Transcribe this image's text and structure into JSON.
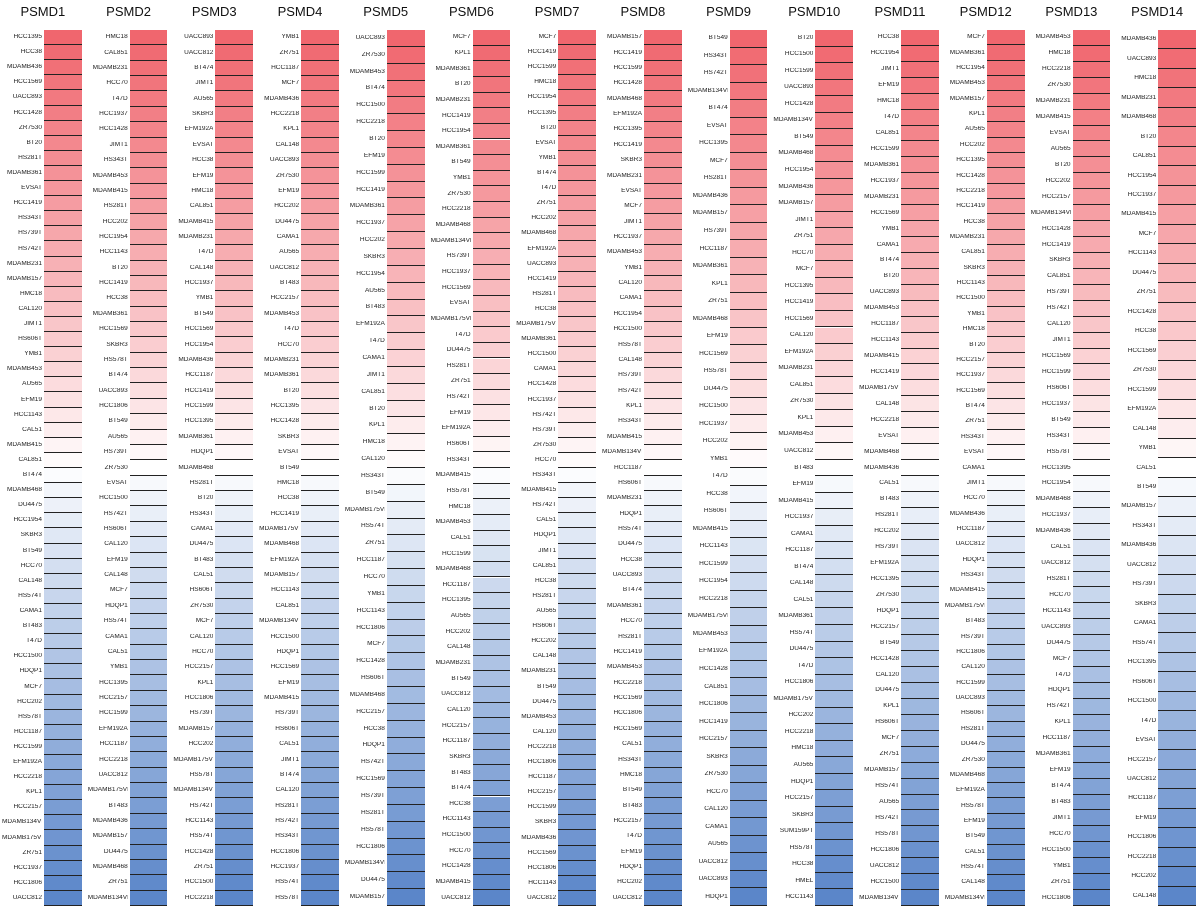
{
  "chart_data": {
    "type": "heatmap",
    "color_scale": {
      "high": "#f0666e",
      "mid": "#ffffff",
      "low": "#5b86c9"
    },
    "panels": [
      {
        "title": "PSMD1",
        "rows": [
          "HCC1395",
          "HCC38",
          "MDAMB436",
          "HCC1569",
          "UACC893",
          "HCC1428",
          "ZR7530",
          "BT20",
          "HS281T",
          "MDAMB361",
          "EVSAT",
          "HCC1419",
          "HS343T",
          "HS739T",
          "HS742T",
          "MDAMB231",
          "MDAMB157",
          "HMC18",
          "CAL120",
          "JIMT1",
          "HS606T",
          "YMB1",
          "MDAMB453",
          "AU565",
          "EFM19",
          "HCC1143",
          "CAL51",
          "MDAMB415",
          "CAL851",
          "BT474",
          "MDAMB468",
          "DU4475",
          "HCC1954",
          "SKBR3",
          "BT549",
          "HCC70",
          "CAL148",
          "HS574T",
          "CAMA1",
          "BT483",
          "T47D",
          "HCC1500",
          "HDQP1",
          "MCF7",
          "HCC202",
          "HS578T",
          "HCC1187",
          "HCC1599",
          "EFM192A",
          "HCC2218",
          "KPL1",
          "HCC2157",
          "MDAMB134VI",
          "MDAMB175VII",
          "ZR751",
          "HCC1937",
          "HCC1806",
          "UACC812"
        ]
      },
      {
        "title": "PSMD2",
        "rows": [
          "HMC18",
          "CAL851",
          "MDAMB231",
          "HCC70",
          "T47D",
          "HCC1937",
          "HCC1428",
          "JIMT1",
          "HS343T",
          "MDAMB453",
          "MDAMB415",
          "HS281T",
          "HCC202",
          "HCC1954",
          "HCC1143",
          "BT20",
          "HCC1419",
          "HCC38",
          "MDAMB361",
          "HCC1569",
          "SKBR3",
          "HS578T",
          "BT474",
          "UACC893",
          "HCC1806",
          "BT549",
          "AU565",
          "HS739T",
          "ZR7530",
          "EVSAT",
          "HCC1500",
          "HS742T",
          "HS606T",
          "CAL120",
          "EFM19",
          "CAL148",
          "MCF7",
          "HDQP1",
          "HS574T",
          "CAMA1",
          "CAL51",
          "YMB1",
          "HCC1395",
          "HCC2157",
          "HCC1599",
          "EFM192A",
          "HCC1187",
          "HCC2218",
          "UACC812",
          "MDAMB175VII",
          "BT483",
          "MDAMB436",
          "MDAMB157",
          "DU4475",
          "MDAMB468",
          "ZR751",
          "MDAMB134VI"
        ]
      },
      {
        "title": "PSMD3",
        "rows": [
          "UACC893",
          "UACC812",
          "BT474",
          "JIMT1",
          "AU565",
          "SKBR3",
          "EFM192A",
          "EVSAT",
          "HCC38",
          "EFM19",
          "HMC18",
          "CAL851",
          "MDAMB415",
          "MDAMB231",
          "T47D",
          "CAL148",
          "HCC1937",
          "YMB1",
          "BT549",
          "HCC1569",
          "HCC1954",
          "MDAMB436",
          "HCC1187",
          "HCC1419",
          "HCC1599",
          "HCC1395",
          "MDAMB361",
          "HDQP1",
          "MDAMB468",
          "HS281T",
          "BT20",
          "HS343T",
          "CAMA1",
          "DU4475",
          "BT483",
          "CAL51",
          "HS606T",
          "ZR7530",
          "MCF7",
          "CAL120",
          "HCC70",
          "HCC2157",
          "KPL1",
          "HCC1806",
          "HS739T",
          "MDAMB157",
          "HCC202",
          "MDAMB175VII",
          "HS578T",
          "MDAMB134VI",
          "HS742T",
          "HCC1143",
          "HS574T",
          "HCC1428",
          "ZR751",
          "HCC1500",
          "HCC2218"
        ]
      },
      {
        "title": "PSMD4",
        "rows": [
          "YMB1",
          "ZR751",
          "HCC1187",
          "MCF7",
          "MDAMB436",
          "HCC2218",
          "KPL1",
          "CAL148",
          "UACC893",
          "ZR7530",
          "EFM19",
          "HCC202",
          "DU4475",
          "CAMA1",
          "AU565",
          "UACC812",
          "BT483",
          "HCC2157",
          "MDAMB453",
          "T47D",
          "HCC70",
          "MDAMB231",
          "MDAMB361",
          "BT20",
          "HCC1395",
          "HCC1428",
          "SKBR3",
          "EVSAT",
          "BT549",
          "HMC18",
          "HCC38",
          "HCC1419",
          "MDAMB175VII",
          "MDAMB468",
          "EFM192A",
          "MDAMB157",
          "HCC1143",
          "CAL851",
          "MDAMB134VI",
          "HCC1500",
          "HDQP1",
          "HCC1569",
          "EFM19",
          "MDAMB415",
          "HS739T",
          "HS606T",
          "CAL51",
          "JIMT1",
          "BT474",
          "CAL120",
          "HS281T",
          "HS742T",
          "HS343T",
          "HCC1806",
          "HCC1937",
          "HS574T",
          "HS578T"
        ]
      },
      {
        "title": "PSMD5",
        "rows": [
          "UACC893",
          "ZR7530",
          "MDAMB453",
          "BT474",
          "HCC1500",
          "HCC2218",
          "BT20",
          "EFM19",
          "HCC1599",
          "HCC1419",
          "MDAMB361",
          "HCC1937",
          "HCC202",
          "SKBR3",
          "HCC1954",
          "AU565",
          "BT483",
          "EFM192A",
          "T47D",
          "CAMA1",
          "JIMT1",
          "CAL851",
          "BT20",
          "KPL1",
          "HMC18",
          "CAL120",
          "HS343T",
          "BT549",
          "MDAMB175VII",
          "HS574T",
          "ZR751",
          "HCC1187",
          "HCC70",
          "YMB1",
          "HCC1143",
          "HCC1806",
          "MCF7",
          "HCC1428",
          "HS606T",
          "MDAMB468",
          "HCC2157",
          "HCC38",
          "HDQP1",
          "HS742T",
          "HCC1569",
          "HS739T",
          "HS281T",
          "HS578T",
          "HCC1806",
          "MDAMB134VI",
          "DU4475",
          "MDAMB157"
        ]
      },
      {
        "title": "PSMD6",
        "rows": [
          "MCF7",
          "KPL1",
          "MDAMB361",
          "BT20",
          "MDAMB231",
          "HCC1419",
          "HCC1954",
          "MDAMB361",
          "BT549",
          "YMB1",
          "ZR7530",
          "HCC2218",
          "MDAMB468",
          "MDAMB134VI",
          "HS739T",
          "HCC1937",
          "HCC1569",
          "EVSAT",
          "MDAMB175VII",
          "T47D",
          "DU4475",
          "HS281T",
          "ZR751",
          "HS742T",
          "EFM19",
          "EFM192A",
          "HS606T",
          "HS343T",
          "MDAMB415",
          "HS578T",
          "HMC18",
          "MDAMB453",
          "CAL51",
          "HCC1599",
          "MDAMB468",
          "HCC1187",
          "HCC1395",
          "AU565",
          "HCC202",
          "CAL148",
          "MDAMB231",
          "BT549",
          "UACC812",
          "CAL120",
          "HCC2157",
          "HCC1187",
          "SKBR3",
          "BT483",
          "BT474",
          "HCC38",
          "HCC1143",
          "HCC1500",
          "HCC70",
          "HCC1428",
          "MDAMB415",
          "UACC812"
        ]
      },
      {
        "title": "PSMD7",
        "rows": [
          "MCF7",
          "HCC1419",
          "HCC1599",
          "HMC18",
          "HCC1954",
          "HCC1395",
          "BT20",
          "EVSAT",
          "YMB1",
          "BT474",
          "T47D",
          "ZR751",
          "HCC202",
          "MDAMB468",
          "EFM192A",
          "UACC893",
          "HCC1419",
          "HS281T",
          "HCC38",
          "MDAMB175VII",
          "MDAMB361",
          "HCC1500",
          "CAMA1",
          "HCC1428",
          "HCC1937",
          "HS742T",
          "HS739T",
          "ZR7530",
          "HCC70",
          "HS343T",
          "MDAMB415",
          "HS742T",
          "CAL51",
          "HDQP1",
          "JIMT1",
          "CAL851",
          "HCC38",
          "HS281T",
          "AU565",
          "HS606T",
          "HCC202",
          "CAL148",
          "MDAMB231",
          "BT549",
          "DU4475",
          "MDAMB453",
          "CAL120",
          "HCC2218",
          "HCC1806",
          "HCC1187",
          "HCC2157",
          "HCC1599",
          "SKBR3",
          "MDAMB436",
          "HCC1569",
          "HCC1806",
          "HCC1143",
          "UACC812"
        ]
      },
      {
        "title": "PSMD8",
        "rows": [
          "MDAMB157",
          "HCC1419",
          "HCC1599",
          "HCC1428",
          "MDAMB468",
          "EFM192A",
          "HCC1395",
          "HCC1419",
          "SKBR3",
          "MDAMB231",
          "EVSAT",
          "MCF7",
          "JIMT1",
          "HCC1937",
          "MDAMB453",
          "YMB1",
          "CAL120",
          "CAMA1",
          "HCC1954",
          "HCC1500",
          "HS578T",
          "CAL148",
          "HS739T",
          "HS742T",
          "KPL1",
          "HS343T",
          "MDAMB415",
          "MDAMB134VI",
          "HCC1187",
          "HS606T",
          "MDAMB231",
          "HDQP1",
          "HS574T",
          "DU4475",
          "HCC38",
          "UACC893",
          "BT474",
          "MDAMB361",
          "HCC70",
          "HS281T",
          "HCC1419",
          "MDAMB453",
          "HCC2218",
          "HCC1569",
          "HCC1806",
          "HCC1569",
          "CAL51",
          "HS343T",
          "HMC18",
          "BT549",
          "BT483",
          "HCC2157",
          "T47D",
          "EFM19",
          "HDQP1",
          "HCC202",
          "UACC812"
        ]
      },
      {
        "title": "PSMD9",
        "rows": [
          "BT549",
          "HS343T",
          "HS742T",
          "MDAMB134VI",
          "BT474",
          "EVSAT",
          "HCC1395",
          "MCF7",
          "HS281T",
          "MDAMB436",
          "MDAMB157",
          "HS739T",
          "HCC1187",
          "MDAMB361",
          "KPL1",
          "ZR751",
          "MDAMB468",
          "EFM19",
          "HCC1569",
          "HS578T",
          "DU4475",
          "HCC1500",
          "HCC1937",
          "HCC202",
          "YMB1",
          "T47D",
          "HCC38",
          "HS606T",
          "MDAMB415",
          "HCC1143",
          "HCC1599",
          "HCC1954",
          "HCC2218",
          "MDAMB175VII",
          "MDAMB453",
          "EFM192A",
          "HCC1428",
          "CAL851",
          "HCC1806",
          "HCC1419",
          "HCC2157",
          "SKBR3",
          "ZR7530",
          "HCC70",
          "CAL120",
          "CAMA1",
          "AU565",
          "UACC812",
          "UACC893",
          "HDQP1"
        ]
      },
      {
        "title": "PSMD10",
        "rows": [
          "BT20",
          "HCC1500",
          "HCC1599",
          "UACC893",
          "HCC1428",
          "MDAMB134VI",
          "BT549",
          "MDAMB468",
          "HCC1954",
          "MDAMB436",
          "MDAMB157",
          "JIMT1",
          "ZR751",
          "HCC70",
          "MCF7",
          "HCC1395",
          "HCC1419",
          "HCC1569",
          "CAL120",
          "EFM192A",
          "MDAMB231",
          "CAL851",
          "ZR7530",
          "KPL1",
          "MDAMB453",
          "UACC812",
          "BT483",
          "EFM19",
          "MDAMB415",
          "HCC1937",
          "CAMA1",
          "HCC1187",
          "BT474",
          "CAL148",
          "CAL51",
          "MDAMB361",
          "HS574T",
          "DU4475",
          "T47D",
          "HCC1806",
          "MDAMB175VII",
          "HCC202",
          "HCC2218",
          "HMC18",
          "AU565",
          "HDQP1",
          "HCC2157",
          "SKBR3",
          "SUM159PT",
          "HS578T",
          "HCC38",
          "HMEL",
          "HCC1143"
        ]
      },
      {
        "title": "PSMD11",
        "rows": [
          "HCC38",
          "HCC1954",
          "JIMT1",
          "EFM19",
          "HMC18",
          "T47D",
          "CAL851",
          "HCC1599",
          "MDAMB361",
          "HCC1937",
          "MDAMB231",
          "HCC1569",
          "YMB1",
          "CAMA1",
          "BT474",
          "BT20",
          "UACC893",
          "MDAMB453",
          "HCC1187",
          "HCC1143",
          "MDAMB415",
          "HCC1419",
          "MDAMB175VII",
          "CAL148",
          "HCC2218",
          "EVSAT",
          "MDAMB468",
          "MDAMB436",
          "CAL51",
          "BT483",
          "HS281T",
          "HCC202",
          "HS739T",
          "EFM192A",
          "HCC1395",
          "ZR7530",
          "HDQP1",
          "HCC2157",
          "BT549",
          "HCC1428",
          "CAL120",
          "DU4475",
          "KPL1",
          "HS606T",
          "MCF7",
          "ZR751",
          "MDAMB157",
          "HS574T",
          "AU565",
          "HS742T",
          "HS578T",
          "HCC1806",
          "UACC812",
          "HCC1500",
          "MDAMB134VI"
        ]
      },
      {
        "title": "PSMD12",
        "rows": [
          "MCF7",
          "MDAMB361",
          "HCC1954",
          "MDAMB453",
          "MDAMB157",
          "KPL1",
          "AU565",
          "HCC202",
          "HCC1395",
          "HCC1428",
          "HCC2218",
          "HCC1419",
          "HCC38",
          "MDAMB231",
          "CAL851",
          "SKBR3",
          "HCC1143",
          "HCC1500",
          "YMB1",
          "HMC18",
          "BT20",
          "HCC2157",
          "HCC1937",
          "HCC1569",
          "BT474",
          "ZR751",
          "HS343T",
          "EVSAT",
          "CAMA1",
          "JIMT1",
          "HCC70",
          "MDAMB436",
          "HCC1187",
          "UACC812",
          "HDQP1",
          "HS343T",
          "MDAMB415",
          "MDAMB175VII",
          "BT483",
          "HS739T",
          "HCC1806",
          "CAL120",
          "HCC1599",
          "UACC893",
          "HS606T",
          "HS281T",
          "DU4475",
          "ZR7530",
          "MDAMB468",
          "EFM192A",
          "HS578T",
          "EFM19",
          "BT549",
          "CAL51",
          "HS574T",
          "CAL148",
          "MDAMB134VI"
        ]
      },
      {
        "title": "PSMD13",
        "rows": [
          "MDAMB453",
          "HMC18",
          "HCC2218",
          "ZR7530",
          "MDAMB231",
          "MDAMB415",
          "EVSAT",
          "AU565",
          "BT20",
          "HCC202",
          "HCC2157",
          "MDAMB134VI",
          "HCC1428",
          "HCC1419",
          "SKBR3",
          "CAL851",
          "HS739T",
          "HS742T",
          "CAL120",
          "JIMT1",
          "HCC1569",
          "HCC1599",
          "HS606T",
          "HCC1937",
          "BT549",
          "HS343T",
          "HS578T",
          "HCC1395",
          "HCC1954",
          "MDAMB468",
          "HCC1937",
          "MDAMB436",
          "CAL51",
          "UACC812",
          "HS281T",
          "HCC70",
          "HCC1143",
          "UACC893",
          "DU4475",
          "MCF7",
          "T47D",
          "HDQP1",
          "HS742T",
          "KPL1",
          "HCC1187",
          "MDAMB361",
          "EFM19",
          "BT474",
          "BT483",
          "JIMT1",
          "HCC70",
          "HCC1500",
          "YMB1",
          "ZR751",
          "HCC1806"
        ]
      },
      {
        "title": "PSMD14",
        "rows": [
          "MDAMB436",
          "UACC893",
          "HMC18",
          "MDAMB231",
          "MDAMB468",
          "BT20",
          "CAL851",
          "HCC1954",
          "HCC1937",
          "MDAMB415",
          "MCF7",
          "HCC1143",
          "DU4475",
          "ZR751",
          "HCC1428",
          "HCC38",
          "HCC1569",
          "ZR7530",
          "HCC1599",
          "EFM192A",
          "CAL148",
          "YMB1",
          "CAL51",
          "BT549",
          "MDAMB157",
          "HS343T",
          "MDAMB436",
          "UACC812",
          "HS739T",
          "SKBR3",
          "CAMA1",
          "HS574T",
          "HCC1395",
          "HS606T",
          "HCC1500",
          "T47D",
          "EVSAT",
          "HCC2157",
          "UACC812",
          "HCC1187",
          "EFM19",
          "HCC1806",
          "HCC2218",
          "HCC202",
          "CAL148"
        ]
      }
    ]
  }
}
